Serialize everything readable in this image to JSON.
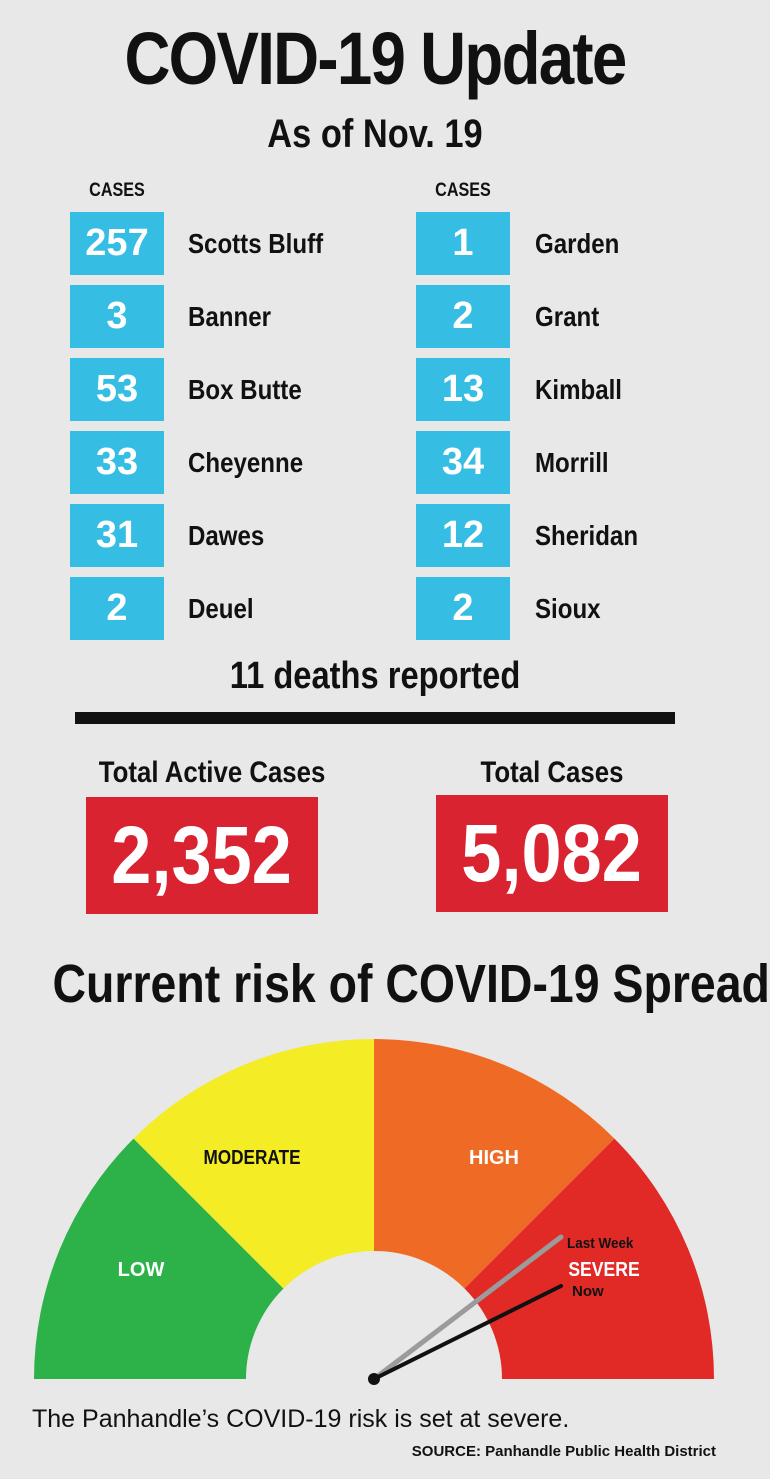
{
  "header": {
    "title": "COVID-19 Update",
    "subtitle": "As of Nov. 19"
  },
  "cases": {
    "column_heading": "CASES",
    "left": [
      {
        "count": "257",
        "county": "Scotts Bluff"
      },
      {
        "count": "3",
        "county": "Banner"
      },
      {
        "count": "53",
        "county": "Box Butte"
      },
      {
        "count": "33",
        "county": "Cheyenne"
      },
      {
        "count": "31",
        "county": "Dawes"
      },
      {
        "count": "2",
        "county": "Deuel"
      }
    ],
    "right": [
      {
        "count": "1",
        "county": "Garden"
      },
      {
        "count": "2",
        "county": "Grant"
      },
      {
        "count": "13",
        "county": "Kimball"
      },
      {
        "count": "34",
        "county": "Morrill"
      },
      {
        "count": "12",
        "county": "Sheridan"
      },
      {
        "count": "2",
        "county": "Sioux"
      }
    ]
  },
  "deaths": "11 deaths reported",
  "totals": {
    "active_label": "Total Active Cases",
    "active_value": "2,352",
    "total_label": "Total Cases",
    "total_value": "5,082"
  },
  "risk": {
    "title": "Current risk of COVID-19 Spread",
    "levels": [
      {
        "label": "LOW",
        "color": "#2db24a"
      },
      {
        "label": "MODERATE",
        "color": "#f4ec24"
      },
      {
        "label": "HIGH",
        "color": "#ef6a24"
      },
      {
        "label": "SEVERE",
        "color": "#e12a26"
      }
    ],
    "last_week_label": "Last Week",
    "now_label": "Now",
    "current_level": "SEVERE"
  },
  "footer": {
    "caption": "The Panhandle’s COVID-19 risk is set at severe.",
    "source": "SOURCE: Panhandle Public Health District"
  },
  "colors": {
    "case_box": "#35bde3",
    "total_box": "#d92331",
    "background": "#e8e8e8"
  }
}
